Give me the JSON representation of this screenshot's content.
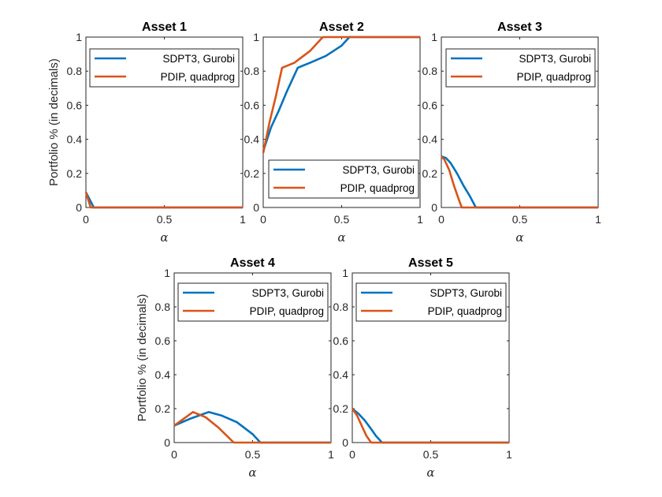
{
  "colors": {
    "series_1": "#0072BD",
    "series_2": "#D95319",
    "axis": "#262626",
    "legend_border": "#262626"
  },
  "chart_data": [
    {
      "type": "line",
      "title": "Asset 1",
      "xlabel": "α",
      "ylabel": "Portfolio % (in decimals)",
      "xlim": [
        0,
        1
      ],
      "ylim": [
        0,
        1
      ],
      "xticks": [
        "0",
        "0.5",
        "1"
      ],
      "yticks": [
        "0",
        "0.2",
        "0.4",
        "0.6",
        "0.8",
        "1"
      ],
      "grid": false,
      "legend": "top-right",
      "series": [
        {
          "name": "SDPT3, Gurobi",
          "x": [
            0,
            0.05,
            1
          ],
          "y": [
            0.09,
            0,
            0
          ]
        },
        {
          "name": "PDIP, quadprog",
          "x": [
            0,
            0.03,
            1
          ],
          "y": [
            0.09,
            0,
            0
          ]
        }
      ]
    },
    {
      "type": "line",
      "title": "Asset 2",
      "xlabel": "α",
      "ylabel": "",
      "xlim": [
        0,
        1
      ],
      "ylim": [
        0,
        1
      ],
      "xticks": [
        "0",
        "0.5",
        "1"
      ],
      "yticks": [
        "0",
        "0.2",
        "0.4",
        "0.6",
        "0.8",
        "1"
      ],
      "grid": false,
      "legend": "bottom-right",
      "series": [
        {
          "name": "SDPT3, Gurobi",
          "x": [
            0,
            0.05,
            0.1,
            0.15,
            0.22,
            0.3,
            0.4,
            0.5,
            0.55,
            1
          ],
          "y": [
            0.33,
            0.47,
            0.57,
            0.68,
            0.82,
            0.85,
            0.89,
            0.95,
            1,
            1
          ]
        },
        {
          "name": "PDIP, quadprog",
          "x": [
            0,
            0.04,
            0.08,
            0.12,
            0.2,
            0.3,
            0.38,
            1
          ],
          "y": [
            0.32,
            0.5,
            0.65,
            0.82,
            0.85,
            0.92,
            1,
            1
          ]
        }
      ]
    },
    {
      "type": "line",
      "title": "Asset 3",
      "xlabel": "α",
      "ylabel": "",
      "xlim": [
        0,
        1
      ],
      "ylim": [
        0,
        1
      ],
      "xticks": [
        "0",
        "0.5",
        "1"
      ],
      "yticks": [
        "0",
        "0.2",
        "0.4",
        "0.6",
        "0.8",
        "1"
      ],
      "grid": false,
      "legend": "top-right",
      "series": [
        {
          "name": "SDPT3, Gurobi",
          "x": [
            0,
            0.03,
            0.06,
            0.1,
            0.14,
            0.18,
            0.22,
            1
          ],
          "y": [
            0.3,
            0.29,
            0.26,
            0.2,
            0.13,
            0.07,
            0,
            0
          ]
        },
        {
          "name": "PDIP, quadprog",
          "x": [
            0,
            0.02,
            0.05,
            0.08,
            0.11,
            0.13,
            1
          ],
          "y": [
            0.3,
            0.28,
            0.22,
            0.13,
            0.05,
            0,
            0
          ]
        }
      ]
    },
    {
      "type": "line",
      "title": "Asset 4",
      "xlabel": "α",
      "ylabel": "Portfolio % (in decimals)",
      "xlim": [
        0,
        1
      ],
      "ylim": [
        0,
        1
      ],
      "xticks": [
        "0",
        "0.5",
        "1"
      ],
      "yticks": [
        "0",
        "0.2",
        "0.4",
        "0.6",
        "0.8",
        "1"
      ],
      "grid": false,
      "legend": "top-right",
      "series": [
        {
          "name": "SDPT3, Gurobi",
          "x": [
            0,
            0.1,
            0.22,
            0.3,
            0.4,
            0.5,
            0.55,
            1
          ],
          "y": [
            0.1,
            0.14,
            0.18,
            0.16,
            0.12,
            0.05,
            0,
            0
          ]
        },
        {
          "name": "PDIP, quadprog",
          "x": [
            0,
            0.06,
            0.12,
            0.2,
            0.28,
            0.38,
            1
          ],
          "y": [
            0.1,
            0.14,
            0.18,
            0.15,
            0.09,
            0,
            0
          ]
        }
      ]
    },
    {
      "type": "line",
      "title": "Asset 5",
      "xlabel": "α",
      "ylabel": "",
      "xlim": [
        0,
        1
      ],
      "ylim": [
        0,
        1
      ],
      "xticks": [
        "0",
        "0.5",
        "1"
      ],
      "yticks": [
        "0",
        "0.2",
        "0.4",
        "0.6",
        "0.8",
        "1"
      ],
      "grid": false,
      "legend": "top-right",
      "series": [
        {
          "name": "SDPT3, Gurobi",
          "x": [
            0,
            0.04,
            0.08,
            0.12,
            0.15,
            0.19,
            1
          ],
          "y": [
            0.2,
            0.17,
            0.13,
            0.08,
            0.04,
            0,
            0
          ]
        },
        {
          "name": "PDIP, quadprog",
          "x": [
            0,
            0.03,
            0.06,
            0.09,
            0.12,
            1
          ],
          "y": [
            0.2,
            0.16,
            0.1,
            0.04,
            0,
            0
          ]
        }
      ]
    }
  ]
}
